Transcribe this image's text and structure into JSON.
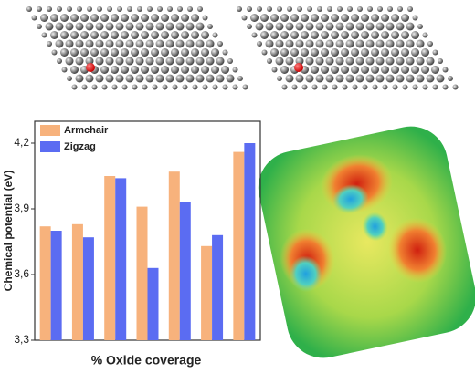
{
  "chart_data": {
    "type": "bar",
    "x_label": "% Oxide coverage",
    "y_label": "Chemical potential (eV)",
    "categories": [
      null,
      null,
      null,
      null,
      null,
      null,
      null
    ],
    "series": [
      {
        "name": "Armchair",
        "color": "#f7b27c",
        "values": [
          3.82,
          3.83,
          4.05,
          3.91,
          4.07,
          3.73,
          4.16
        ]
      },
      {
        "name": "Zigzag",
        "color": "#5b6cf2",
        "values": [
          3.8,
          3.77,
          4.04,
          3.63,
          3.93,
          3.78,
          4.2
        ]
      }
    ],
    "ylim": [
      3.3,
      4.3
    ],
    "yticks": [
      {
        "value": 3.3,
        "label": "3,3"
      },
      {
        "value": 3.6,
        "label": "3,6"
      },
      {
        "value": 3.9,
        "label": "3,9"
      },
      {
        "value": 4.2,
        "label": "4,2"
      }
    ],
    "legend": "upper left",
    "grid": false
  }
}
